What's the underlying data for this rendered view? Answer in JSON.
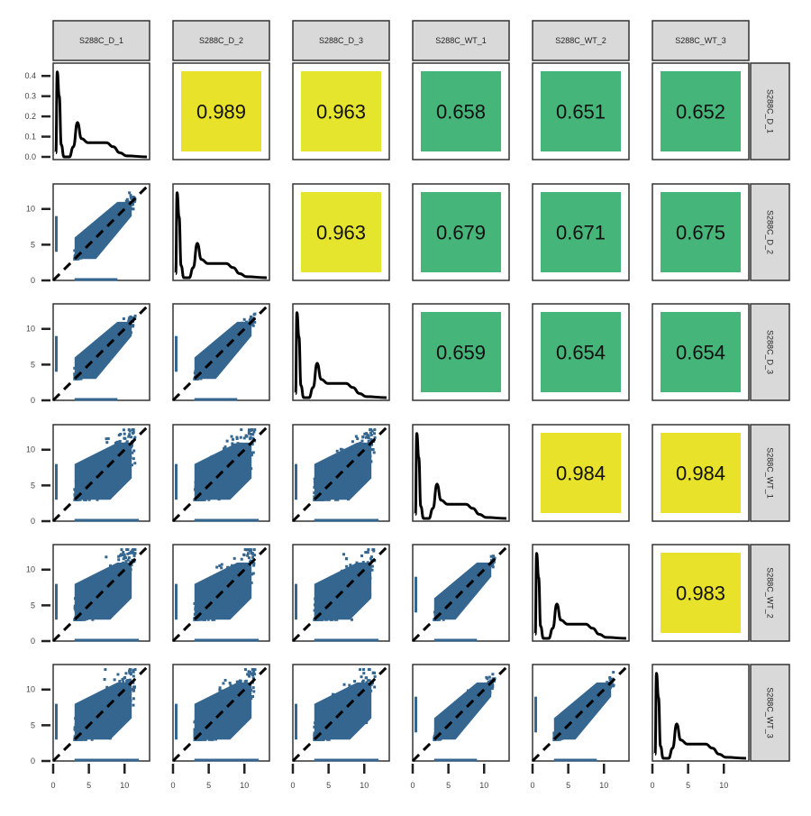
{
  "chart_data": {
    "type": "pair-matrix",
    "samples": [
      "S288C_D_1",
      "S288C_D_2",
      "S288C_D_3",
      "S288C_WT_1",
      "S288C_WT_2",
      "S288C_WT_3"
    ],
    "correlations": [
      {
        "row": 0,
        "col": 1,
        "value": "0.989"
      },
      {
        "row": 0,
        "col": 2,
        "value": "0.963"
      },
      {
        "row": 0,
        "col": 3,
        "value": "0.658"
      },
      {
        "row": 0,
        "col": 4,
        "value": "0.651"
      },
      {
        "row": 0,
        "col": 5,
        "value": "0.652"
      },
      {
        "row": 1,
        "col": 2,
        "value": "0.963"
      },
      {
        "row": 1,
        "col": 3,
        "value": "0.679"
      },
      {
        "row": 1,
        "col": 4,
        "value": "0.671"
      },
      {
        "row": 1,
        "col": 5,
        "value": "0.675"
      },
      {
        "row": 2,
        "col": 3,
        "value": "0.659"
      },
      {
        "row": 2,
        "col": 4,
        "value": "0.654"
      },
      {
        "row": 2,
        "col": 5,
        "value": "0.654"
      },
      {
        "row": 3,
        "col": 4,
        "value": "0.984"
      },
      {
        "row": 3,
        "col": 5,
        "value": "0.984"
      },
      {
        "row": 4,
        "col": 5,
        "value": "0.983"
      }
    ],
    "correlation_colors": {
      "high": "#e8e22a",
      "low": "#46b57a"
    },
    "density_y_ticks": [
      "0.0",
      "0.1",
      "0.2",
      "0.3",
      "0.4"
    ],
    "density_ylim": [
      0,
      0.45
    ],
    "scatter_ticks": [
      "0",
      "5",
      "10"
    ],
    "axis_lim": [
      0,
      13.5
    ],
    "density_curve": [
      [
        0,
        0.02
      ],
      [
        0.2,
        0.42
      ],
      [
        0.5,
        0.3
      ],
      [
        0.8,
        0.06
      ],
      [
        1.2,
        0.0
      ],
      [
        2.0,
        0.0
      ],
      [
        2.6,
        0.05
      ],
      [
        3.2,
        0.17
      ],
      [
        3.8,
        0.09
      ],
      [
        4.8,
        0.07
      ],
      [
        6.0,
        0.07
      ],
      [
        7.5,
        0.07
      ],
      [
        8.5,
        0.05
      ],
      [
        9.5,
        0.02
      ],
      [
        10.5,
        0.005
      ],
      [
        13.5,
        0.0
      ]
    ],
    "point_color": "#34668f",
    "diagonal_line": {
      "style": "dashed",
      "color": "#000000"
    },
    "grid": false
  }
}
